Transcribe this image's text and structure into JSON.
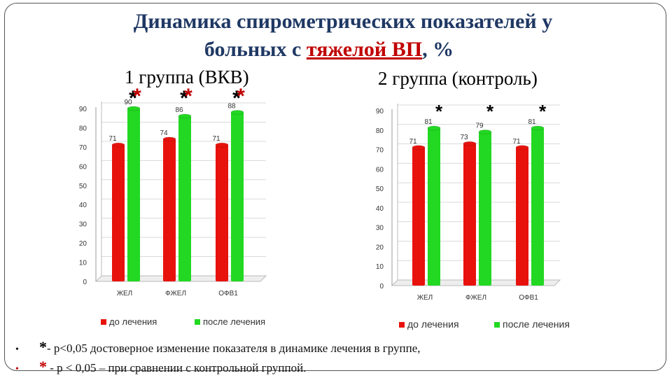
{
  "title": {
    "line1": "Динамика спирометрических показателей у",
    "line2_pre": "больных с ",
    "line2_hl": "тяжелой ВП",
    "line2_post": ", %"
  },
  "group1_label": "1 группа (ВКВ)",
  "group2_label": "2 группа (контроль)",
  "colors": {
    "before": "#e8120c",
    "after": "#22d822",
    "star1": "#000000",
    "star2": "#c00000"
  },
  "notes": [
    {
      "bullet": "•",
      "star": "*",
      "text": "- p<0,05 достоверное изменение показателя в динамике лечения в группе,"
    },
    {
      "bullet": "•",
      "star": "*",
      "text": " - p < 0,05 – при сравнении с контрольной группой."
    }
  ],
  "chart_data": [
    {
      "type": "bar",
      "categories": [
        "ЖЕЛ",
        "ФЖЕЛ",
        "ОФВ1"
      ],
      "series": [
        {
          "name": "до лечения",
          "values": [
            71,
            74,
            71
          ]
        },
        {
          "name": "после лечения",
          "values": [
            90,
            86,
            88
          ]
        }
      ],
      "data_labels": [
        "71",
        "90",
        "74",
        "86",
        "71",
        "88"
      ],
      "ylim": [
        0,
        90
      ],
      "yticks": [
        0,
        10,
        20,
        30,
        40,
        50,
        60,
        70,
        80,
        90
      ],
      "legend": "bottom",
      "annotations": [
        {
          "category": "ЖЕЛ",
          "stars": [
            "*",
            "*"
          ]
        },
        {
          "category": "ФЖЕЛ",
          "stars": [
            "*",
            "*"
          ]
        },
        {
          "category": "ОФВ1",
          "stars": [
            "*",
            "*"
          ]
        }
      ]
    },
    {
      "type": "bar",
      "categories": [
        "ЖЕЛ",
        "ФЖЕЛ",
        "ОФВ1"
      ],
      "series": [
        {
          "name": "до лечения",
          "values": [
            71,
            73,
            71
          ]
        },
        {
          "name": "после лечения",
          "values": [
            81,
            79,
            81
          ]
        }
      ],
      "data_labels": [
        "71",
        "81",
        "73",
        "79",
        "71",
        "81"
      ],
      "ylim": [
        0,
        90
      ],
      "yticks": [
        0,
        10,
        20,
        30,
        40,
        50,
        60,
        70,
        80,
        90
      ],
      "legend": "bottom",
      "annotations": [
        {
          "category": "ЖЕЛ",
          "stars": [
            "*"
          ]
        },
        {
          "category": "ФЖЕЛ",
          "stars": [
            "*"
          ]
        },
        {
          "category": "ОФВ1",
          "stars": [
            "*"
          ]
        }
      ]
    }
  ]
}
